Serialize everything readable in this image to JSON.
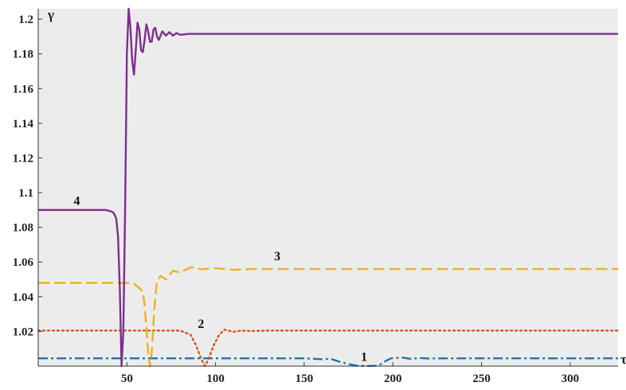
{
  "chart_data": {
    "type": "line",
    "title": "",
    "xlabel": "τ",
    "ylabel": "γ",
    "xlim": [
      0,
      327
    ],
    "ylim": [
      1.0,
      1.206
    ],
    "grid": false,
    "background": "#ececec",
    "xticks": [
      {
        "v": 50,
        "label": "50"
      },
      {
        "v": 100,
        "label": "100"
      },
      {
        "v": 150,
        "label": "150"
      },
      {
        "v": 200,
        "label": "200"
      },
      {
        "v": 250,
        "label": "250"
      },
      {
        "v": 300,
        "label": "300"
      }
    ],
    "yticks": [
      {
        "v": 1.02,
        "label": "1.02"
      },
      {
        "v": 1.04,
        "label": "1.04"
      },
      {
        "v": 1.06,
        "label": "1.06"
      },
      {
        "v": 1.08,
        "label": "1.08"
      },
      {
        "v": 1.1,
        "label": "1.1"
      },
      {
        "v": 1.12,
        "label": "1.12"
      },
      {
        "v": 1.14,
        "label": "1.14"
      },
      {
        "v": 1.16,
        "label": "1.16"
      },
      {
        "v": 1.18,
        "label": "1.18"
      },
      {
        "v": 1.2,
        "label": "1.2"
      }
    ],
    "series": [
      {
        "label": "1",
        "color": "#1f77b4",
        "style": "dashdot",
        "label_at": [
          182,
          1.003
        ],
        "points": [
          [
            0,
            1.0045
          ],
          [
            150,
            1.0045
          ],
          [
            160,
            1.004
          ],
          [
            165,
            1.0042
          ],
          [
            170,
            1.0025
          ],
          [
            175,
            1.0012
          ],
          [
            180,
            1.0002
          ],
          [
            185,
            1.0
          ],
          [
            190,
            1.0002
          ],
          [
            193,
            1.001
          ],
          [
            196,
            1.003
          ],
          [
            199,
            1.0045
          ],
          [
            205,
            1.005
          ],
          [
            210,
            1.0042
          ],
          [
            215,
            1.0047
          ],
          [
            220,
            1.0044
          ],
          [
            230,
            1.0045
          ],
          [
            327,
            1.0045
          ]
        ]
      },
      {
        "label": "2",
        "color": "#d9541a",
        "style": "dotted",
        "label_at": [
          90,
          1.022
        ],
        "points": [
          [
            0,
            1.0205
          ],
          [
            80,
            1.0205
          ],
          [
            86,
            1.018
          ],
          [
            89,
            1.012
          ],
          [
            92,
            1.004
          ],
          [
            94,
            1.0
          ],
          [
            96,
            1.004
          ],
          [
            99,
            1.012
          ],
          [
            102,
            1.018
          ],
          [
            105,
            1.021
          ],
          [
            110,
            1.0198
          ],
          [
            115,
            1.0205
          ],
          [
            120,
            1.0202
          ],
          [
            130,
            1.0205
          ],
          [
            327,
            1.0205
          ]
        ]
      },
      {
        "label": "3",
        "color": "#edb120",
        "style": "dashed",
        "label_at": [
          133,
          1.061
        ],
        "points": [
          [
            0,
            1.048
          ],
          [
            50,
            1.048
          ],
          [
            54,
            1.0475
          ],
          [
            57,
            1.045
          ],
          [
            59,
            1.043
          ],
          [
            60,
            1.035
          ],
          [
            61,
            1.022
          ],
          [
            62,
            1.008
          ],
          [
            63,
            1.0
          ],
          [
            64,
            1.008
          ],
          [
            65,
            1.025
          ],
          [
            66,
            1.04
          ],
          [
            67,
            1.049
          ],
          [
            69,
            1.052
          ],
          [
            72,
            1.05
          ],
          [
            76,
            1.055
          ],
          [
            80,
            1.054
          ],
          [
            86,
            1.057
          ],
          [
            92,
            1.0558
          ],
          [
            100,
            1.0565
          ],
          [
            110,
            1.0555
          ],
          [
            120,
            1.056
          ],
          [
            140,
            1.056
          ],
          [
            327,
            1.056
          ]
        ]
      },
      {
        "label": "4",
        "color": "#7e2f8e",
        "style": "solid",
        "label_at": [
          20,
          1.093
        ],
        "points": [
          [
            0,
            1.09
          ],
          [
            38,
            1.09
          ],
          [
            40,
            1.0895
          ],
          [
            42,
            1.0888
          ],
          [
            43,
            1.0875
          ],
          [
            44,
            1.085
          ],
          [
            45,
            1.075
          ],
          [
            46,
            1.045
          ],
          [
            47,
            1.0
          ],
          [
            48,
            1.02
          ],
          [
            49,
            1.09
          ],
          [
            50,
            1.18
          ],
          [
            51,
            1.206
          ],
          [
            52,
            1.195
          ],
          [
            53,
            1.176
          ],
          [
            54,
            1.168
          ],
          [
            55,
            1.182
          ],
          [
            56,
            1.198
          ],
          [
            57,
            1.194
          ],
          [
            58,
            1.182
          ],
          [
            59,
            1.181
          ],
          [
            60,
            1.188
          ],
          [
            61,
            1.197
          ],
          [
            62,
            1.193
          ],
          [
            63,
            1.187
          ],
          [
            64,
            1.187
          ],
          [
            65,
            1.194
          ],
          [
            66,
            1.195
          ],
          [
            67,
            1.19
          ],
          [
            68,
            1.188
          ],
          [
            70,
            1.193
          ],
          [
            72,
            1.1905
          ],
          [
            74,
            1.1925
          ],
          [
            76,
            1.1905
          ],
          [
            78,
            1.192
          ],
          [
            80,
            1.191
          ],
          [
            85,
            1.1915
          ],
          [
            100,
            1.1915
          ],
          [
            327,
            1.1915
          ]
        ]
      }
    ]
  }
}
